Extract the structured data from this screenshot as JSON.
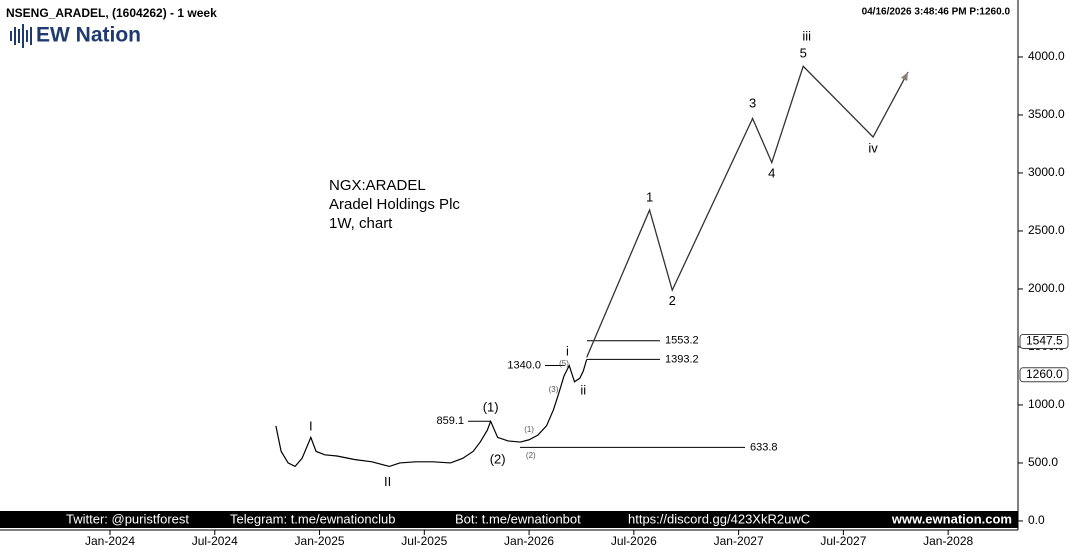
{
  "chart_data": {
    "type": "line",
    "title": "NSENG_ARADEL, (1604262) - 1 week",
    "timestamp": "04/16/2026 3:48:46 PM  P:1260.0",
    "logo": "EW Nation",
    "annotations": [
      "NGX:ARADEL",
      "Aradel Holdings Plc",
      "1W, chart"
    ],
    "footer": [
      "Twitter: @puristforest",
      "Telegram: t.me/ewnationclub",
      "Bot: t.me/ewnationbot",
      "https://discord.gg/423XkR2uwC",
      "www.ewnation.com"
    ],
    "x": [
      9.5,
      9.8,
      10.2,
      10.6,
      11.0,
      11.5,
      11.8,
      12.3,
      13,
      14,
      15,
      16,
      16.6,
      17.5,
      18.5,
      19.5,
      20.2,
      20.8,
      21.2,
      21.6,
      21.8,
      22.2,
      22.8,
      23.5,
      24,
      24.5,
      25,
      25.4,
      25.7,
      26,
      26.3,
      26.6,
      26.9,
      27.1,
      27.3
    ],
    "values": [
      820,
      600,
      500,
      470,
      540,
      720,
      600,
      570,
      560,
      530,
      510,
      470,
      500,
      510,
      510,
      500,
      540,
      600,
      680,
      780,
      859,
      720,
      690,
      680,
      700,
      740,
      820,
      960,
      1100,
      1250,
      1340,
      1200,
      1230,
      1290,
      1393
    ],
    "projection": {
      "x": [
        27.3,
        30.9,
        32.2,
        36.8,
        37.9,
        39.7,
        43.7,
        45.7
      ],
      "values": [
        1410,
        2680,
        1990,
        3470,
        3090,
        3920,
        3310,
        3870
      ]
    },
    "levels": [
      1553.2,
      1393.2,
      {
        "value": 1340,
        "label": "1340.0"
      },
      859.1,
      633.8
    ],
    "price_tags": [
      1547.5,
      {
        "value": 1260,
        "label": "1260.0"
      }
    ],
    "wave_labels": [
      {
        "text": "I",
        "x": 11.5,
        "y": 810
      },
      {
        "text": "II",
        "x": 15.9,
        "y": 330
      },
      {
        "text": "(1)",
        "x": 21.8,
        "y": 975
      },
      {
        "text": "(2)",
        "x": 22.2,
        "y": 525
      },
      {
        "text": "i",
        "x": 26.2,
        "y": 1455
      },
      {
        "text": "ii",
        "x": 27.1,
        "y": 1120
      },
      {
        "text": "1",
        "x": 30.9,
        "y": 2785
      },
      {
        "text": "2",
        "x": 32.2,
        "y": 1890
      },
      {
        "text": "3",
        "x": 36.8,
        "y": 3595
      },
      {
        "text": "4",
        "x": 37.9,
        "y": 2990
      },
      {
        "text": "5",
        "x": 39.7,
        "y": 4025
      },
      {
        "text": "iii",
        "x": 39.9,
        "y": 4170
      },
      {
        "text": "iv",
        "x": 43.7,
        "y": 3205
      }
    ],
    "minor_labels": [
      {
        "text": "(1)",
        "x": 24,
        "y": 785
      },
      {
        "text": "(2)",
        "x": 24.1,
        "y": 560
      },
      {
        "text": "(3)",
        "x": 25.4,
        "y": 1130
      },
      {
        "text": "(5)",
        "x": 26,
        "y": 1353
      }
    ],
    "color": "#000000",
    "projection_color": "#333333",
    "xlim": [
      -6.3,
      52
    ],
    "ylim": [
      -78,
      4448
    ],
    "xticks": [
      {
        "value": 0,
        "label": "Jan-2024"
      },
      {
        "value": 6,
        "label": "Jul-2024"
      },
      {
        "value": 12,
        "label": "Jan-2025"
      },
      {
        "value": 18,
        "label": "Jul-2025"
      },
      {
        "value": 24,
        "label": "Jan-2026"
      },
      {
        "value": 30,
        "label": "Jul-2026"
      },
      {
        "value": 36,
        "label": "Jan-2027"
      },
      {
        "value": 42,
        "label": "Jul-2027"
      },
      {
        "value": 48,
        "label": "Jan-2028"
      }
    ],
    "yticks": [
      {
        "value": 0,
        "label": "0.0"
      },
      {
        "value": 500,
        "label": "500.0"
      },
      {
        "value": 1000,
        "label": "1000.0"
      },
      {
        "value": 1500,
        "label": "1500.0"
      },
      {
        "value": 2000,
        "label": "2000.0"
      },
      {
        "value": 2500,
        "label": "2500.0"
      },
      {
        "value": 3000,
        "label": "3000.0"
      },
      {
        "value": 3500,
        "label": "3500.0"
      },
      {
        "value": 4000,
        "label": "4000.0"
      }
    ]
  }
}
